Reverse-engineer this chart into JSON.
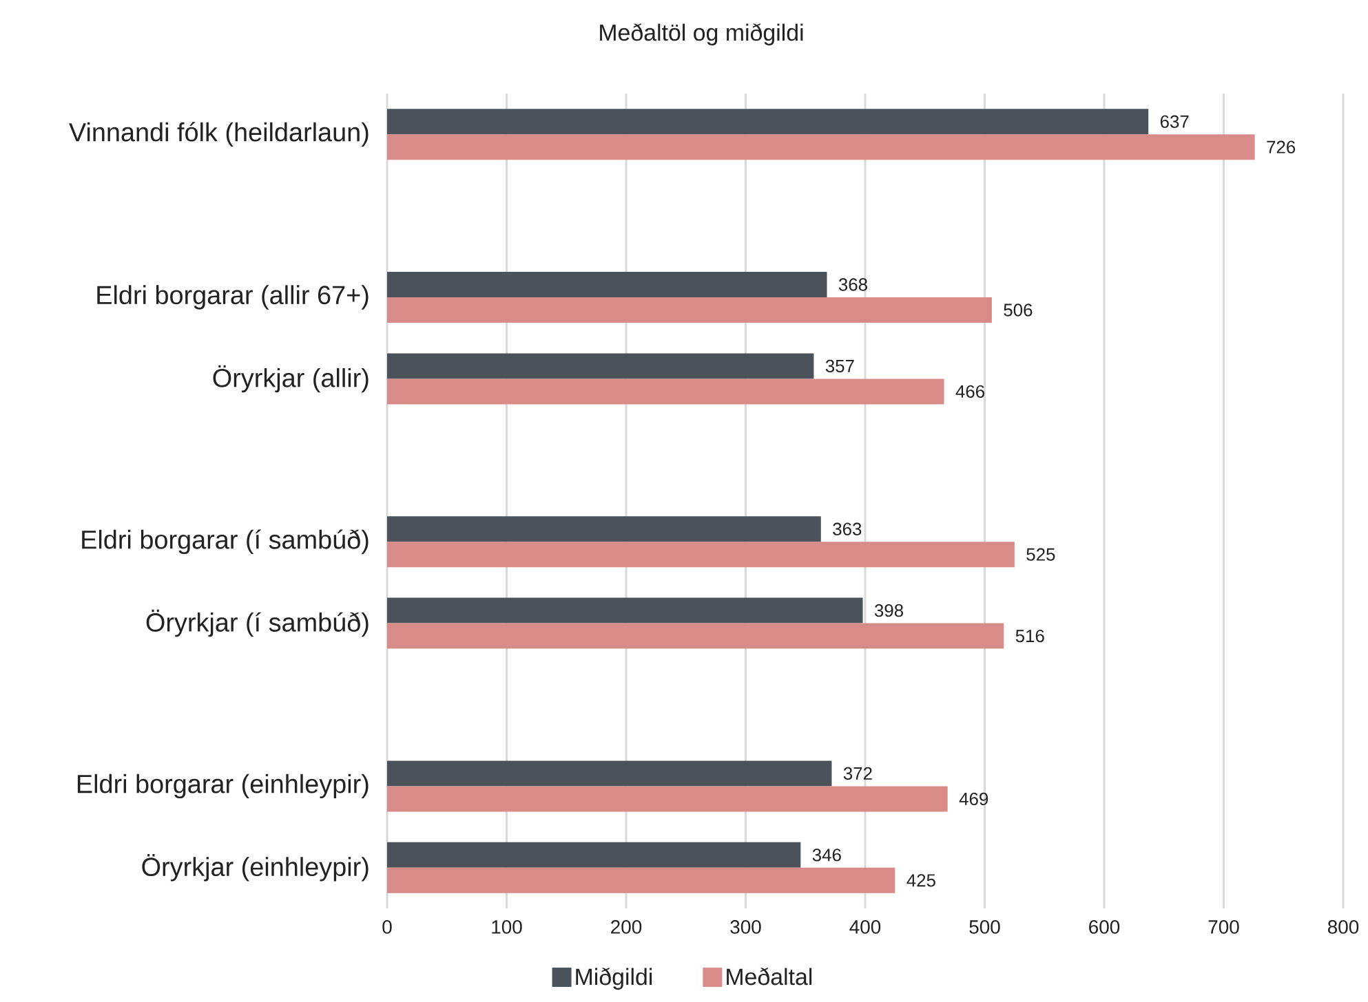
{
  "chart_data": {
    "type": "bar",
    "orientation": "horizontal",
    "title": "Meðaltöl og miðgildi",
    "categories": [
      "Vinnandi fólk (heildarlaun)",
      null,
      "Eldri borgarar (allir 67+)",
      "Öryrkjar (allir)",
      null,
      "Eldri borgarar (í sambúð)",
      "Öryrkjar (í sambúð)",
      null,
      "Eldri borgarar (einhleypir)",
      "Öryrkjar (einhleypir)"
    ],
    "series": [
      {
        "name": "Miðgildi",
        "color": "#4b5259",
        "values": [
          637,
          null,
          368,
          357,
          null,
          363,
          398,
          null,
          372,
          346
        ]
      },
      {
        "name": "Meðaltal",
        "color": "#d98b89",
        "values": [
          726,
          null,
          506,
          466,
          null,
          525,
          516,
          null,
          469,
          425
        ]
      }
    ],
    "xlim": [
      0,
      800
    ],
    "xticks": [
      0,
      100,
      200,
      300,
      400,
      500,
      600,
      700,
      800
    ],
    "grid": "x",
    "legend": "bottom",
    "data_labels": true
  }
}
